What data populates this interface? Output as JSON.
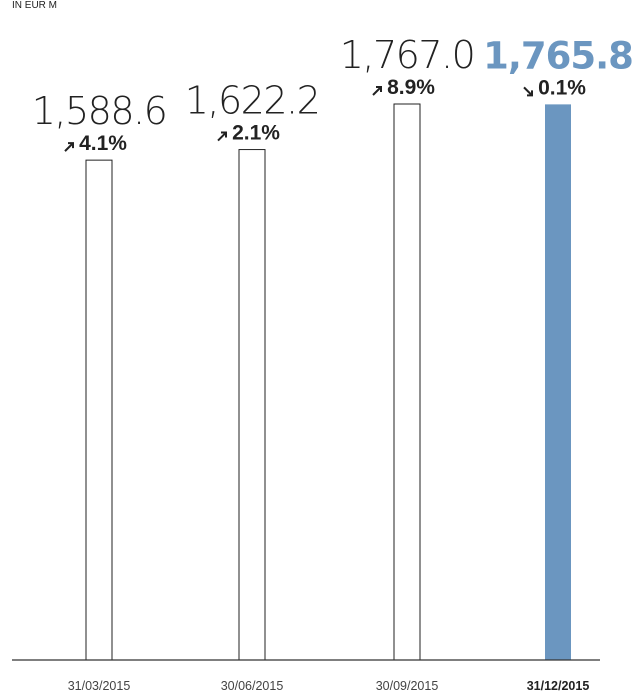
{
  "chart_data": {
    "type": "bar",
    "unit_label": "IN EUR M",
    "categories": [
      "31/03/2015",
      "30/06/2015",
      "30/09/2015",
      "31/12/2015"
    ],
    "values": [
      1588.6,
      1622.2,
      1767.0,
      1765.8
    ],
    "value_labels": [
      "1,588.6",
      "1,622.2",
      "1,767.0",
      "1,765.8"
    ],
    "changes": [
      {
        "label": "4.1%",
        "direction": "up"
      },
      {
        "label": "2.1%",
        "direction": "up"
      },
      {
        "label": "8.9%",
        "direction": "up"
      },
      {
        "label": "0.1%",
        "direction": "down"
      }
    ],
    "highlight_index": 3,
    "ylim": [
      0,
      1767.0
    ],
    "colors": {
      "highlight": "#6b96c0",
      "outline": "#222222"
    }
  }
}
